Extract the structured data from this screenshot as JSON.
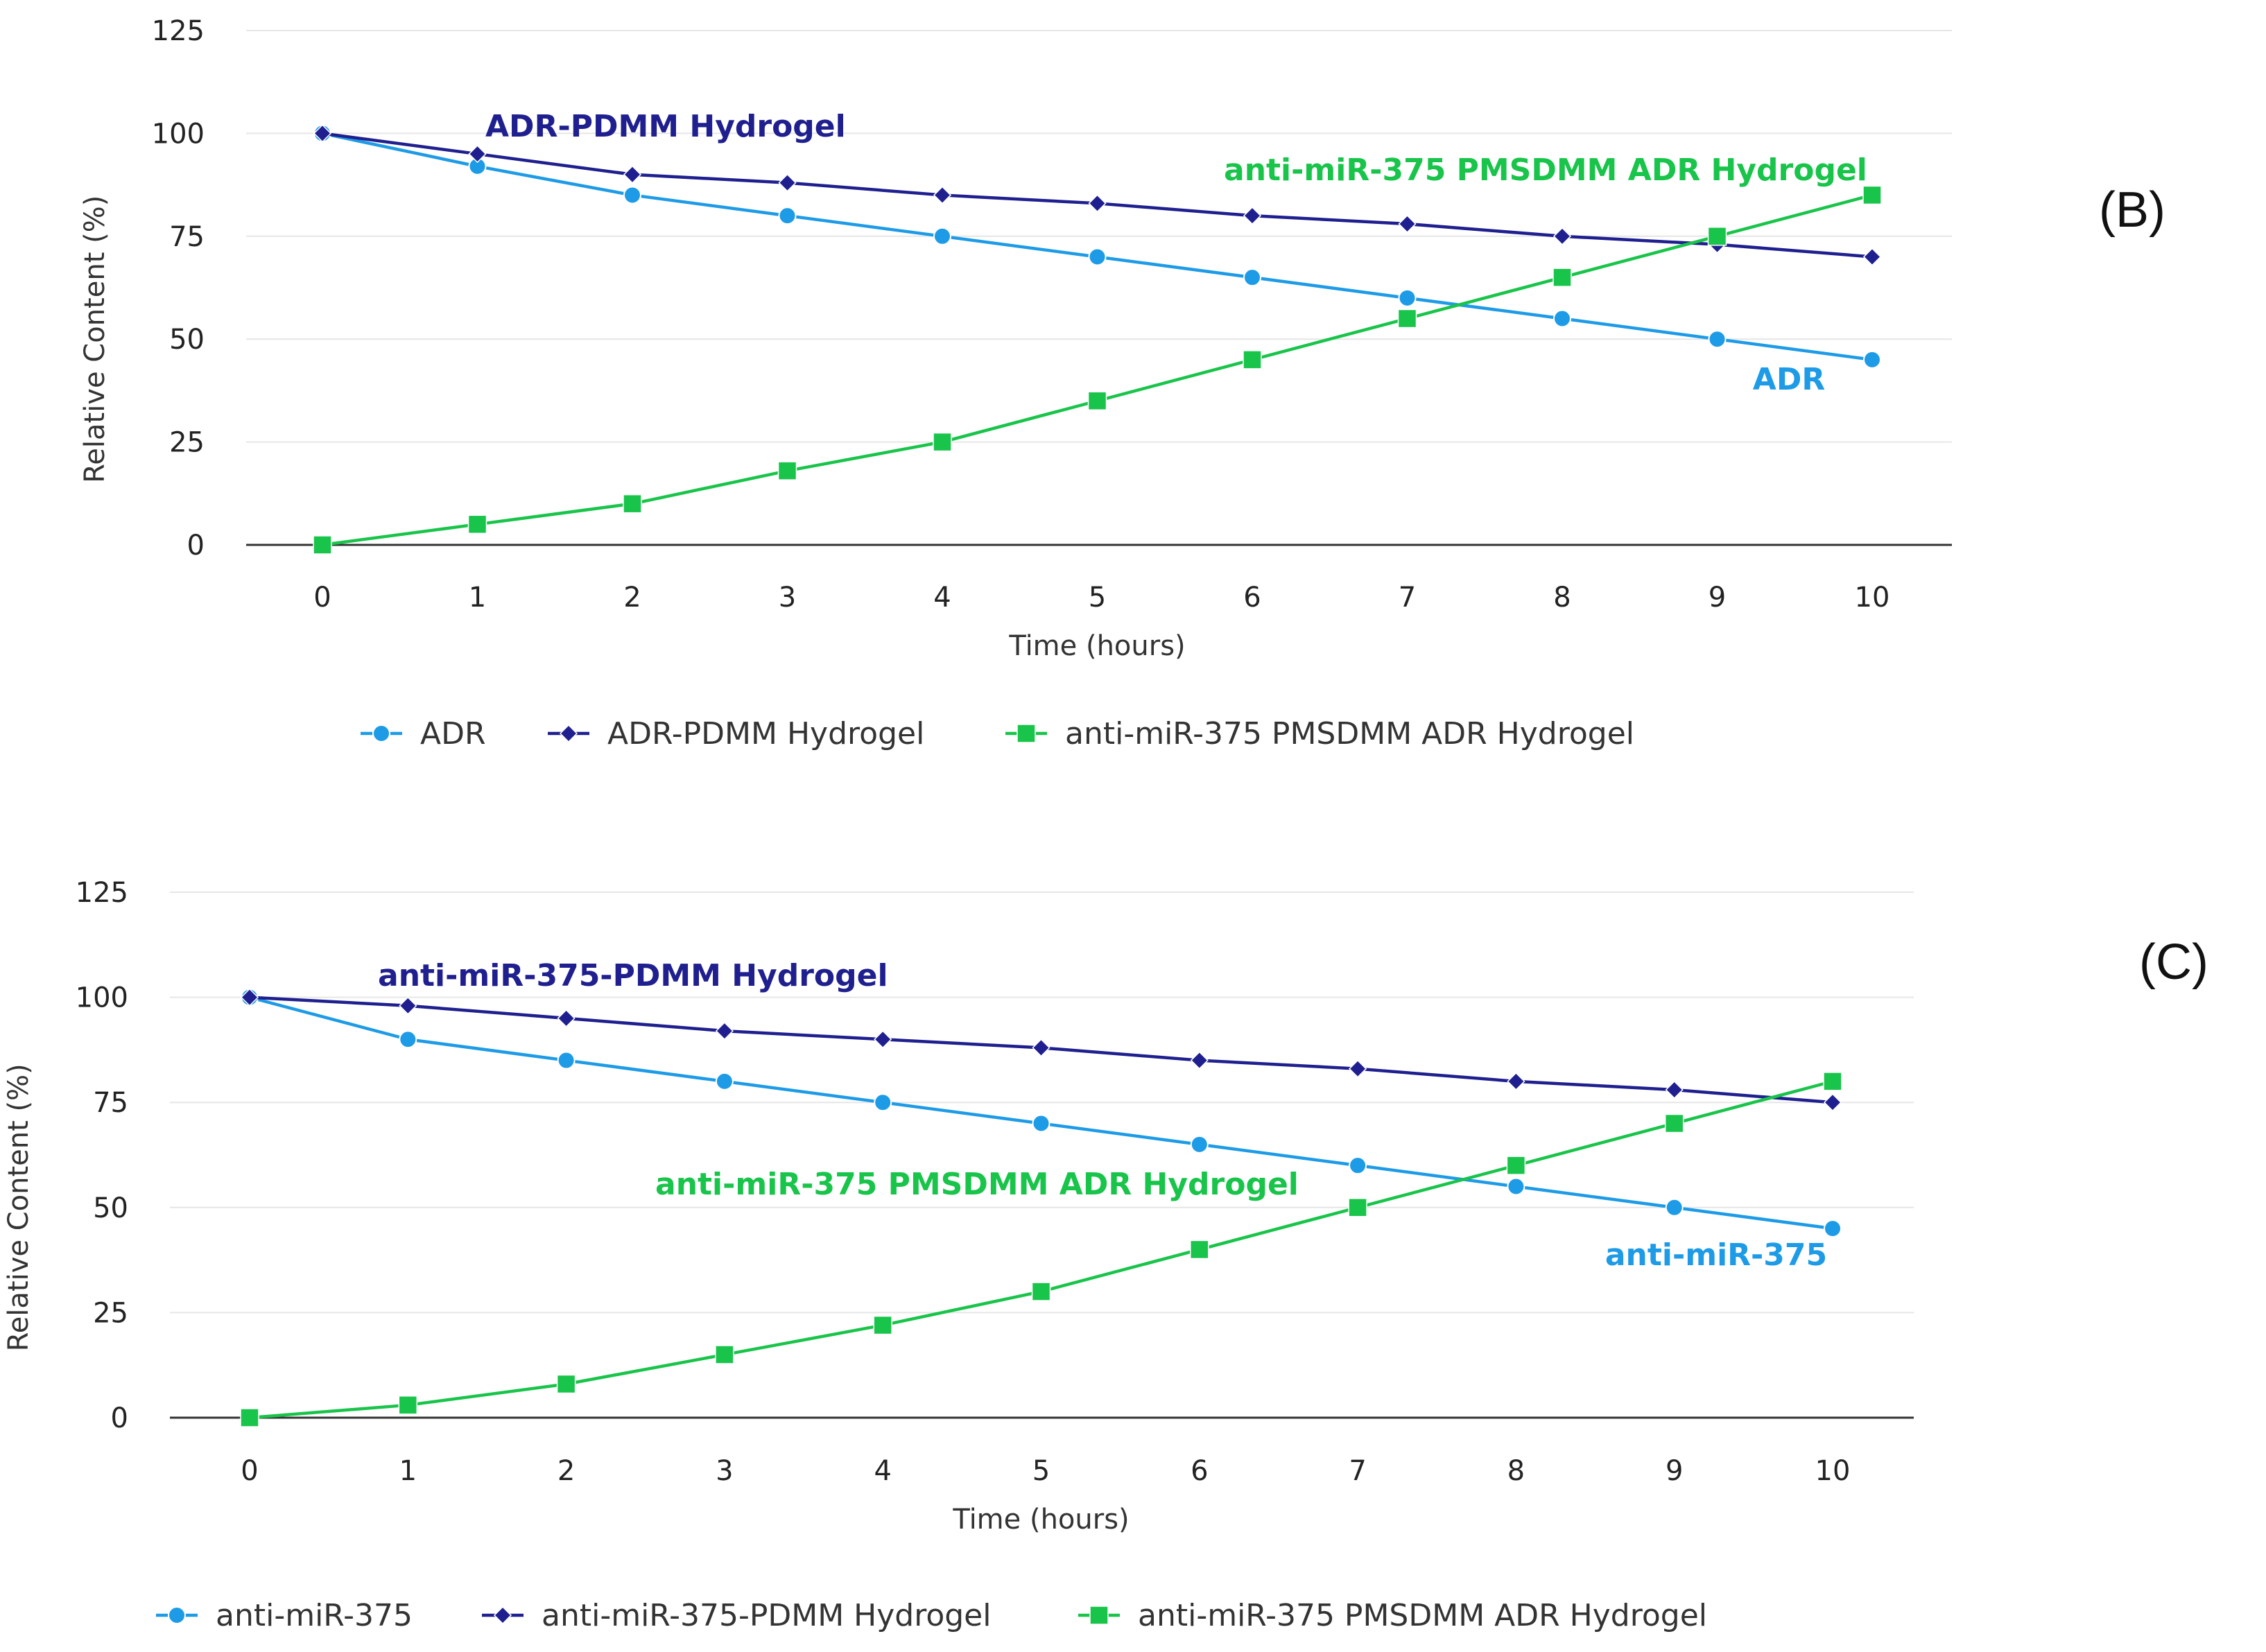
{
  "chart_data": [
    {
      "type": "line",
      "panel_label": "(B)",
      "title": "",
      "xlabel": "Time (hours)",
      "ylabel": "Relative Content (%)",
      "x": [
        0,
        1,
        2,
        3,
        4,
        5,
        6,
        7,
        8,
        9,
        10
      ],
      "x_tick_labels": [
        "0",
        "1",
        "2",
        "3",
        "4",
        "5",
        "6",
        "7",
        "8",
        "9",
        "10"
      ],
      "ylim": [
        0,
        125
      ],
      "y_ticks": [
        0,
        25,
        50,
        75,
        100,
        125
      ],
      "y_tick_labels": [
        "0",
        "25",
        "50",
        "75",
        "100",
        "125"
      ],
      "grid": "horizontal",
      "legend_position": "bottom",
      "series": [
        {
          "name": "ADR",
          "color": "#1E9BE6",
          "marker": "circle",
          "values": [
            100,
            92,
            85,
            80,
            75,
            70,
            65,
            60,
            55,
            50,
            45
          ],
          "annotation": "ADR"
        },
        {
          "name": "ADR-PDMM Hydrogel",
          "color": "#1F1F8F",
          "marker": "diamond",
          "values": [
            100,
            95,
            90,
            88,
            85,
            83,
            80,
            78,
            75,
            73,
            70
          ],
          "annotation": "ADR-PDMM Hydrogel"
        },
        {
          "name": "anti-miR-375 PMSDMM ADR Hydrogel",
          "color": "#19C44A",
          "marker": "square",
          "values": [
            0,
            5,
            10,
            18,
            25,
            35,
            45,
            55,
            65,
            75,
            85
          ],
          "annotation": "anti-miR-375 PMSDMM ADR Hydrogel"
        }
      ]
    },
    {
      "type": "line",
      "panel_label": "(C)",
      "title": "",
      "xlabel": "Time (hours)",
      "ylabel": "Relative Content (%)",
      "x": [
        0,
        1,
        2,
        3,
        4,
        5,
        6,
        7,
        8,
        9,
        10
      ],
      "x_tick_labels": [
        "0",
        "1",
        "2",
        "3",
        "4",
        "5",
        "6",
        "7",
        "8",
        "9",
        "10"
      ],
      "ylim": [
        0,
        125
      ],
      "y_ticks": [
        0,
        25,
        50,
        75,
        100,
        125
      ],
      "y_tick_labels": [
        "0",
        "25",
        "50",
        "75",
        "100",
        "125"
      ],
      "grid": "horizontal",
      "legend_position": "bottom",
      "series": [
        {
          "name": "anti-miR-375",
          "color": "#1E9BE6",
          "marker": "circle",
          "values": [
            100,
            90,
            85,
            80,
            75,
            70,
            65,
            60,
            55,
            50,
            45
          ],
          "annotation": "anti-miR-375"
        },
        {
          "name": "anti-miR-375-PDMM Hydrogel",
          "color": "#1F1F8F",
          "marker": "diamond",
          "values": [
            100,
            98,
            95,
            92,
            90,
            88,
            85,
            83,
            80,
            78,
            75
          ],
          "annotation": "anti-miR-375-PDMM Hydrogel"
        },
        {
          "name": "anti-miR-375 PMSDMM ADR Hydrogel",
          "color": "#19C44A",
          "marker": "square",
          "values": [
            0,
            3,
            8,
            15,
            22,
            30,
            40,
            50,
            60,
            70,
            80
          ],
          "annotation": "anti-miR-375 PMSDMM ADR Hydrogel"
        }
      ]
    }
  ]
}
